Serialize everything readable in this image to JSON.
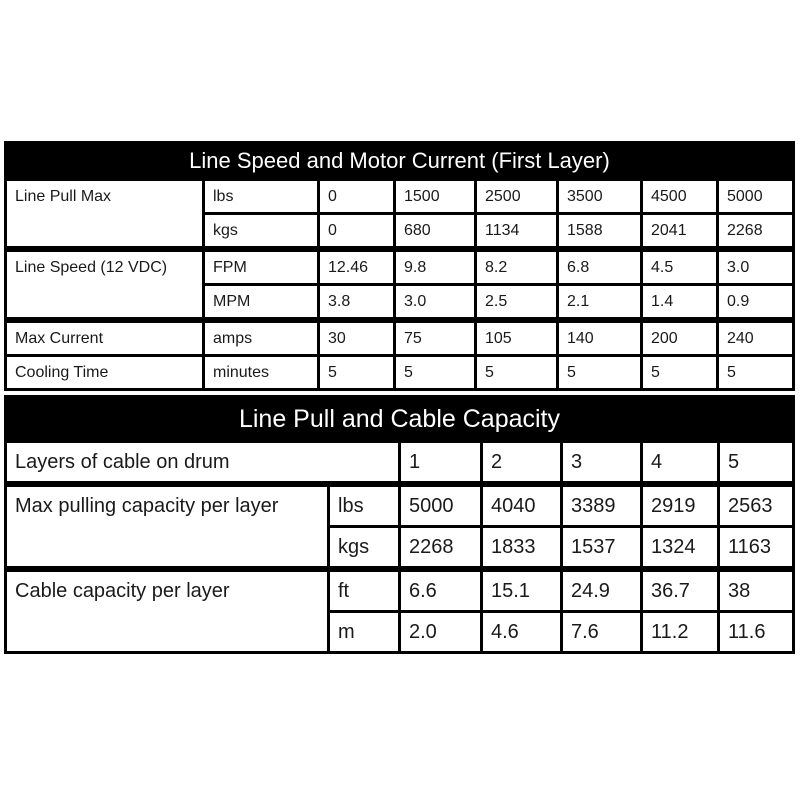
{
  "table1": {
    "title": "Line Speed and Motor Current (First Layer)",
    "rows": [
      {
        "label": "Line Pull Max",
        "unit": "lbs",
        "values": [
          "0",
          "1500",
          "2500",
          "3500",
          "4500",
          "5000"
        ]
      },
      {
        "unit": "kgs",
        "values": [
          "0",
          "680",
          "1134",
          "1588",
          "2041",
          "2268"
        ]
      },
      {
        "label": "Line Speed (12 VDC)",
        "unit": "FPM",
        "values": [
          "12.46",
          "9.8",
          "8.2",
          "6.8",
          "4.5",
          "3.0"
        ]
      },
      {
        "unit": "MPM",
        "values": [
          "3.8",
          "3.0",
          "2.5",
          "2.1",
          "1.4",
          "0.9"
        ]
      },
      {
        "label": "Max Current",
        "unit": "amps",
        "values": [
          "30",
          "75",
          "105",
          "140",
          "200",
          "240"
        ]
      },
      {
        "label": "Cooling Time",
        "unit": "minutes",
        "values": [
          "5",
          "5",
          "5",
          "5",
          "5",
          "5"
        ]
      }
    ]
  },
  "table2": {
    "title": "Line Pull and Cable Capacity",
    "header": {
      "label": "Layers of cable on drum",
      "values": [
        "1",
        "2",
        "3",
        "4",
        "5"
      ]
    },
    "rows": [
      {
        "label": "Max pulling capacity per layer",
        "unit": "lbs",
        "values": [
          "5000",
          "4040",
          "3389",
          "2919",
          "2563"
        ]
      },
      {
        "unit": "kgs",
        "values": [
          "2268",
          "1833",
          "1537",
          "1324",
          "1163"
        ]
      },
      {
        "label": "Cable capacity per layer",
        "unit": "ft",
        "values": [
          "6.6",
          "15.1",
          "24.9",
          "36.7",
          "38"
        ]
      },
      {
        "unit": "m",
        "values": [
          "2.0",
          "4.6",
          "7.6",
          "11.2",
          "11.6"
        ]
      }
    ]
  }
}
